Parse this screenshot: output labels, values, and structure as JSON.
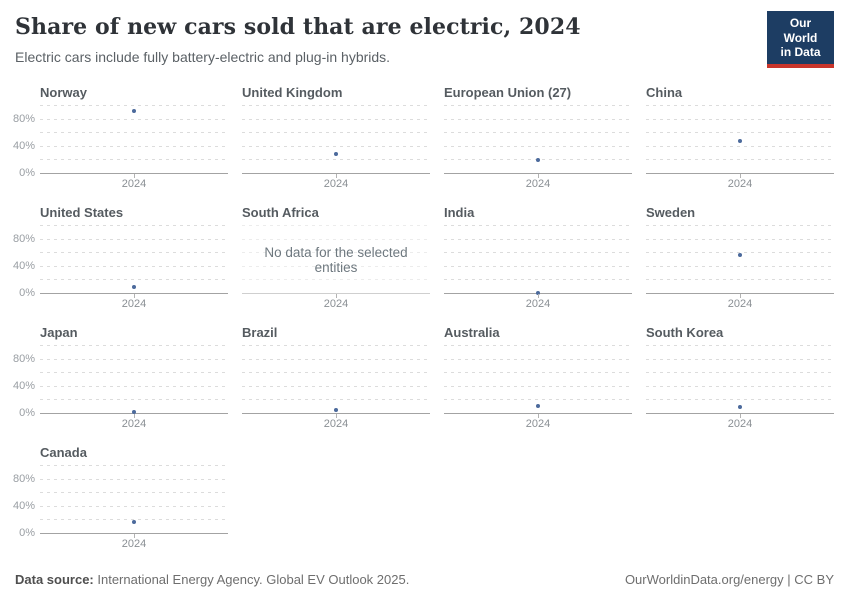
{
  "header": {
    "title": "Share of new cars sold that are electric, 2024",
    "subtitle": "Electric cars include fully battery-electric and plug-in hybrids.",
    "logo": {
      "line1": "Our World",
      "line2": "in Data",
      "bg_color": "#1d3d63",
      "accent_color": "#c9352b"
    }
  },
  "chart_data": {
    "type": "scatter",
    "title": "Share of new cars sold that are electric, 2024",
    "x": [
      2024
    ],
    "x_tick_label": "2024",
    "ylim": [
      0,
      100
    ],
    "y_gridlines": [
      0,
      20,
      40,
      60,
      80,
      100
    ],
    "y_tick_labels": [
      "0%",
      "40%",
      "80%"
    ],
    "y_labeled_values": [
      0,
      40,
      80
    ],
    "grid": "dashed",
    "point_color": "#4c6a9c",
    "no_data_message": "No data for the selected entities",
    "columns_per_row": 4,
    "facets": [
      {
        "name": "Norway",
        "year": 2024,
        "value": 93
      },
      {
        "name": "United Kingdom",
        "year": 2024,
        "value": 29
      },
      {
        "name": "European Union (27)",
        "year": 2024,
        "value": 21
      },
      {
        "name": "China",
        "year": 2024,
        "value": 48
      },
      {
        "name": "United States",
        "year": 2024,
        "value": 10
      },
      {
        "name": "South Africa",
        "year": 2024,
        "value": null
      },
      {
        "name": "India",
        "year": 2024,
        "value": 2
      },
      {
        "name": "Sweden",
        "year": 2024,
        "value": 58
      },
      {
        "name": "Japan",
        "year": 2024,
        "value": 3
      },
      {
        "name": "Brazil",
        "year": 2024,
        "value": 6
      },
      {
        "name": "Australia",
        "year": 2024,
        "value": 12
      },
      {
        "name": "South Korea",
        "year": 2024,
        "value": 10
      },
      {
        "name": "Canada",
        "year": 2024,
        "value": 17
      }
    ]
  },
  "footer": {
    "source_label": "Data source:",
    "source_text": "International Energy Agency. Global EV Outlook 2025.",
    "credit": "OurWorldinData.org/energy | CC BY"
  }
}
